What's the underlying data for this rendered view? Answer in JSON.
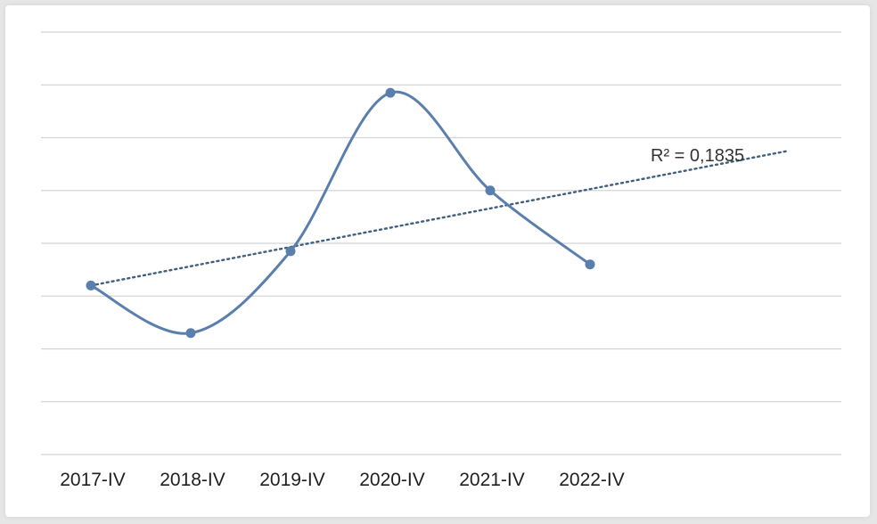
{
  "chart_data": {
    "type": "line",
    "categories": [
      "2017-IV",
      "2018-IV",
      "2019-IV",
      "2020-IV",
      "2021-IV",
      "2022-IV"
    ],
    "series": [
      {
        "values": [
          3.2,
          2.3,
          3.85,
          6.85,
          5.0,
          3.6
        ]
      }
    ],
    "ylim": [
      0,
      8
    ],
    "grid": true,
    "legend": "none",
    "trendline": {
      "type": "linear",
      "label": "R² = 0,1835",
      "start": 3.2,
      "end": 5.75
    },
    "colors": {
      "series": "#5b7fad",
      "trendline": "#3f5f7f",
      "grid": "#d4d4d4"
    }
  }
}
